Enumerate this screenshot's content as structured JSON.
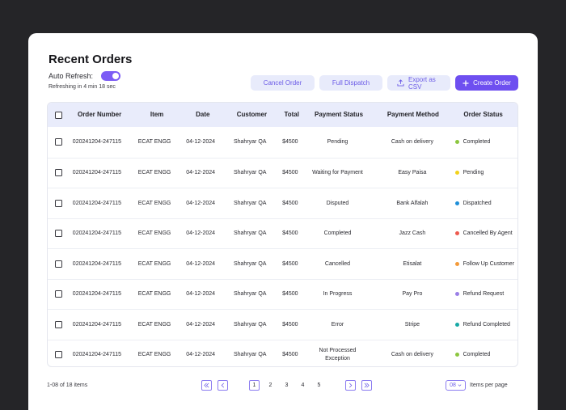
{
  "header": {
    "title": "Recent Orders",
    "auto_refresh_label": "Auto Refresh:",
    "auto_refresh_on": true,
    "refresh_text": "Refreshing in 4 min 18 sec"
  },
  "actions": {
    "cancel_label": "Cancel Order",
    "full_dispatch_label": "Full Dispatch",
    "export_label": "Export as CSV",
    "create_label": "Create Order"
  },
  "table": {
    "columns": [
      "Order Number",
      "Item",
      "Date",
      "Customer",
      "Total",
      "Payment Status",
      "Payment Method",
      "Order Status"
    ],
    "rows": [
      {
        "order": "020241204-247115",
        "item": "ECAT ENGG",
        "date": "04-12-2024",
        "customer": "Shahryar QA",
        "total": "$4500",
        "payment_status": "Pending",
        "payment_method": "Cash on delivery",
        "order_status": "Completed",
        "status_color": "#8cc63f"
      },
      {
        "order": "020241204-247115",
        "item": "ECAT ENGG",
        "date": "04-12-2024",
        "customer": "Shahryar QA",
        "total": "$4500",
        "payment_status": "Waiting for Payment",
        "payment_method": "Easy Paisa",
        "order_status": "Pending",
        "status_color": "#f2d21b"
      },
      {
        "order": "020241204-247115",
        "item": "ECAT ENGG",
        "date": "04-12-2024",
        "customer": "Shahryar QA",
        "total": "$4500",
        "payment_status": "Disputed",
        "payment_method": "Bank Alfalah",
        "order_status": "Dispatched",
        "status_color": "#1e8fd8"
      },
      {
        "order": "020241204-247115",
        "item": "ECAT ENGG",
        "date": "04-12-2024",
        "customer": "Shahryar QA",
        "total": "$4500",
        "payment_status": "Completed",
        "payment_method": "Jazz Cash",
        "order_status": "Cancelled By Agent",
        "status_color": "#ee5a4f"
      },
      {
        "order": "020241204-247115",
        "item": "ECAT ENGG",
        "date": "04-12-2024",
        "customer": "Shahryar QA",
        "total": "$4500",
        "payment_status": "Cancelled",
        "payment_method": "Etisalat",
        "order_status": "Follow Up Customer",
        "status_color": "#f39a3a"
      },
      {
        "order": "020241204-247115",
        "item": "ECAT ENGG",
        "date": "04-12-2024",
        "customer": "Shahryar QA",
        "total": "$4500",
        "payment_status": "In Progress",
        "payment_method": "Pay Pro",
        "order_status": "Refund Request",
        "status_color": "#9a7fe6"
      },
      {
        "order": "020241204-247115",
        "item": "ECAT ENGG",
        "date": "04-12-2024",
        "customer": "Shahryar QA",
        "total": "$4500",
        "payment_status": "Error",
        "payment_method": "Stripe",
        "order_status": "Refund Completed",
        "status_color": "#17a9a6"
      },
      {
        "order": "020241204-247115",
        "item": "ECAT ENGG",
        "date": "04-12-2024",
        "customer": "Shahryar QA",
        "total": "$4500",
        "payment_status": "Not Processed Exception",
        "payment_method": "Cash on delivery",
        "order_status": "Completed",
        "status_color": "#8cc63f"
      }
    ]
  },
  "footer": {
    "count_text": "1-08 of 18 items",
    "pages": [
      "1",
      "2",
      "3",
      "4",
      "5"
    ],
    "active_page": "1",
    "per_page_value": "08",
    "per_page_label": "Items per page"
  }
}
